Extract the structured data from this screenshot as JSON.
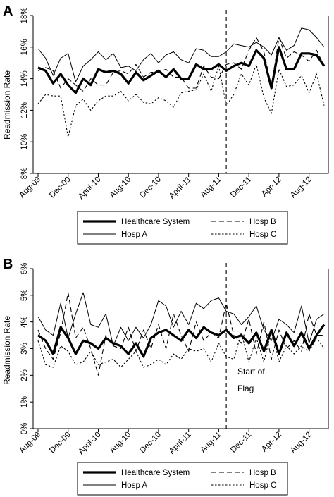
{
  "figure": {
    "panels": [
      {
        "letter": "A",
        "ylabel": "Readmission Rate",
        "ytick_labels": [
          "8%",
          "10%",
          "12%",
          "14%",
          "16%",
          "18%"
        ],
        "annotation": []
      },
      {
        "letter": "B",
        "ylabel": "Readmission Rate",
        "ytick_labels": [
          "0%",
          "1%",
          "2%",
          "3%",
          "4%",
          "5%",
          "6%"
        ],
        "annotation": [
          "Start of",
          "Flag"
        ]
      }
    ],
    "xtick_labels": [
      "Aug-09",
      "Dec-09",
      "April-10",
      "Aug-10",
      "Dec-10",
      "April-11",
      "Aug-11",
      "Dec-11",
      "Apr-12",
      "Aug-12"
    ],
    "legend": [
      {
        "label": "Healthcare System",
        "style": "thick"
      },
      {
        "label": "Hosp B",
        "style": "dashed"
      },
      {
        "label": "Hosp A",
        "style": "thin"
      },
      {
        "label": "Hosp C",
        "style": "dotted"
      }
    ]
  },
  "chart_data": [
    {
      "type": "line",
      "title": "A",
      "xlabel": "",
      "ylabel": "Readmission Rate",
      "x": [
        "Aug-09",
        "Sep-09",
        "Oct-09",
        "Nov-09",
        "Dec-09",
        "Jan-10",
        "Feb-10",
        "Mar-10",
        "Apr-10",
        "May-10",
        "Jun-10",
        "Jul-10",
        "Aug-10",
        "Sep-10",
        "Oct-10",
        "Nov-10",
        "Dec-10",
        "Jan-11",
        "Feb-11",
        "Mar-11",
        "Apr-11",
        "May-11",
        "Jun-11",
        "Jul-11",
        "Aug-11",
        "Sep-11",
        "Oct-11",
        "Nov-11",
        "Dec-11",
        "Jan-12",
        "Feb-12",
        "Mar-12",
        "Apr-12",
        "May-12",
        "Jun-12",
        "Jul-12",
        "Aug-12",
        "Sep-12",
        "Oct-12"
      ],
      "ylim": [
        8,
        18
      ],
      "y_unit": "%",
      "yticks": [
        8,
        10,
        12,
        14,
        16,
        18
      ],
      "xticks": [
        "Aug-09",
        "Dec-09",
        "April-10",
        "Aug-10",
        "Dec-10",
        "April-11",
        "Aug-11",
        "Dec-11",
        "Apr-12",
        "Aug-12"
      ],
      "vline_x": "Sep-11",
      "grid": false,
      "legend_position": "bottom",
      "series": [
        {
          "name": "Healthcare System",
          "style": "thick",
          "values": [
            14.7,
            14.5,
            13.7,
            14.3,
            13.6,
            13.1,
            14.0,
            13.6,
            14.6,
            14.4,
            14.5,
            14.3,
            13.7,
            14.4,
            13.9,
            14.2,
            14.5,
            14.1,
            14.6,
            14.0,
            14.0,
            14.9,
            14.6,
            14.6,
            14.9,
            14.5,
            14.8,
            15.0,
            14.8,
            15.8,
            15.3,
            13.4,
            16.0,
            14.6,
            14.6,
            15.6,
            15.6,
            15.5,
            14.8
          ]
        },
        {
          "name": "Hosp A",
          "style": "thin",
          "values": [
            15.9,
            15.3,
            14.2,
            15.3,
            15.6,
            13.8,
            14.8,
            15.2,
            15.7,
            15.2,
            15.6,
            14.7,
            14.8,
            14.5,
            15.2,
            15.6,
            15.0,
            15.5,
            15.7,
            15.2,
            15.0,
            15.9,
            15.8,
            15.4,
            15.4,
            15.7,
            16.2,
            16.1,
            16.0,
            16.3,
            16.0,
            15.5,
            16.6,
            15.8,
            16.1,
            17.2,
            17.1,
            16.6,
            16.0
          ]
        },
        {
          "name": "Hosp B",
          "style": "dashed",
          "values": [
            14.5,
            14.7,
            14.5,
            13.4,
            14.0,
            13.6,
            13.2,
            14.0,
            13.6,
            13.6,
            14.4,
            14.5,
            14.3,
            14.9,
            14.1,
            14.4,
            14.4,
            14.6,
            14.1,
            14.1,
            13.4,
            13.4,
            14.8,
            14.1,
            14.0,
            14.9,
            15.0,
            14.6,
            15.8,
            16.6,
            15.7,
            13.5,
            16.6,
            15.3,
            15.7,
            15.5,
            15.1,
            15.8,
            14.8
          ]
        },
        {
          "name": "Hosp C",
          "style": "dotted",
          "values": [
            12.4,
            13.0,
            12.9,
            12.9,
            10.3,
            12.3,
            12.7,
            12.0,
            12.6,
            12.9,
            12.9,
            13.2,
            12.6,
            13.0,
            12.5,
            12.4,
            12.8,
            12.6,
            12.2,
            13.1,
            13.2,
            13.3,
            14.3,
            13.2,
            14.8,
            12.3,
            13.0,
            14.3,
            13.6,
            14.9,
            12.8,
            11.8,
            14.6,
            13.5,
            13.6,
            14.2,
            13.1,
            14.3,
            12.3
          ]
        }
      ]
    },
    {
      "type": "line",
      "title": "B",
      "xlabel": "",
      "ylabel": "Readmission Rate",
      "x": [
        "Aug-09",
        "Sep-09",
        "Oct-09",
        "Nov-09",
        "Dec-09",
        "Jan-10",
        "Feb-10",
        "Mar-10",
        "Apr-10",
        "May-10",
        "Jun-10",
        "Jul-10",
        "Aug-10",
        "Sep-10",
        "Oct-10",
        "Nov-10",
        "Dec-10",
        "Jan-11",
        "Feb-11",
        "Mar-11",
        "Apr-11",
        "May-11",
        "Jun-11",
        "Jul-11",
        "Aug-11",
        "Sep-11",
        "Oct-11",
        "Nov-11",
        "Dec-11",
        "Jan-12",
        "Feb-12",
        "Mar-12",
        "Apr-12",
        "May-12",
        "Jun-12",
        "Jul-12",
        "Aug-12",
        "Sep-12",
        "Oct-12"
      ],
      "ylim": [
        0,
        6
      ],
      "y_unit": "%",
      "yticks": [
        0,
        1,
        2,
        3,
        4,
        5,
        6
      ],
      "xticks": [
        "Aug-09",
        "Dec-09",
        "April-10",
        "Aug-10",
        "Dec-10",
        "April-11",
        "Aug-11",
        "Dec-11",
        "Apr-12",
        "Aug-12"
      ],
      "vline_x": "Sep-11",
      "annotation": "Start of Flag",
      "grid": false,
      "legend_position": "bottom",
      "series": [
        {
          "name": "Healthcare System",
          "style": "thick",
          "values": [
            3.5,
            3.3,
            2.8,
            3.8,
            3.4,
            2.8,
            3.3,
            3.2,
            3.0,
            3.4,
            3.2,
            3.1,
            2.8,
            3.2,
            2.7,
            3.4,
            3.6,
            3.7,
            3.5,
            3.3,
            3.7,
            3.4,
            3.8,
            3.6,
            3.5,
            3.7,
            3.4,
            3.5,
            3.2,
            3.6,
            2.9,
            3.7,
            2.8,
            3.6,
            3.1,
            3.6,
            3.0,
            3.5,
            3.9
          ]
        },
        {
          "name": "Hosp A",
          "style": "thin",
          "values": [
            4.2,
            3.7,
            3.5,
            4.7,
            3.4,
            4.3,
            5.1,
            3.9,
            3.8,
            4.3,
            3.1,
            3.8,
            3.3,
            3.8,
            3.4,
            3.9,
            4.8,
            4.6,
            3.8,
            4.4,
            3.9,
            4.7,
            4.5,
            4.8,
            4.9,
            4.4,
            4.3,
            3.9,
            4.2,
            4.6,
            3.7,
            3.3,
            4.1,
            3.9,
            3.6,
            4.6,
            3.2,
            4.1,
            4.3
          ]
        },
        {
          "name": "Hosp B",
          "style": "dashed",
          "values": [
            3.7,
            3.0,
            2.6,
            3.6,
            5.1,
            3.4,
            3.8,
            3.0,
            2.0,
            3.5,
            3.1,
            3.0,
            3.8,
            2.9,
            3.7,
            3.0,
            3.9,
            3.0,
            4.3,
            3.5,
            2.9,
            4.0,
            3.3,
            3.6,
            3.4,
            4.7,
            3.5,
            3.2,
            4.1,
            2.8,
            4.0,
            2.6,
            3.7,
            3.0,
            3.3,
            2.9,
            4.3,
            3.5,
            3.5
          ]
        },
        {
          "name": "Hosp C",
          "style": "dotted",
          "values": [
            3.3,
            2.4,
            2.3,
            3.1,
            2.9,
            2.4,
            2.5,
            2.9,
            2.4,
            2.5,
            2.6,
            2.3,
            2.6,
            2.9,
            2.3,
            2.4,
            2.6,
            2.4,
            2.8,
            2.6,
            3.0,
            2.9,
            3.0,
            2.5,
            3.2,
            2.7,
            2.6,
            3.6,
            2.5,
            3.4,
            2.5,
            3.7,
            2.5,
            3.1,
            2.8,
            3.1,
            2.9,
            3.4,
            3.0
          ]
        }
      ]
    }
  ]
}
